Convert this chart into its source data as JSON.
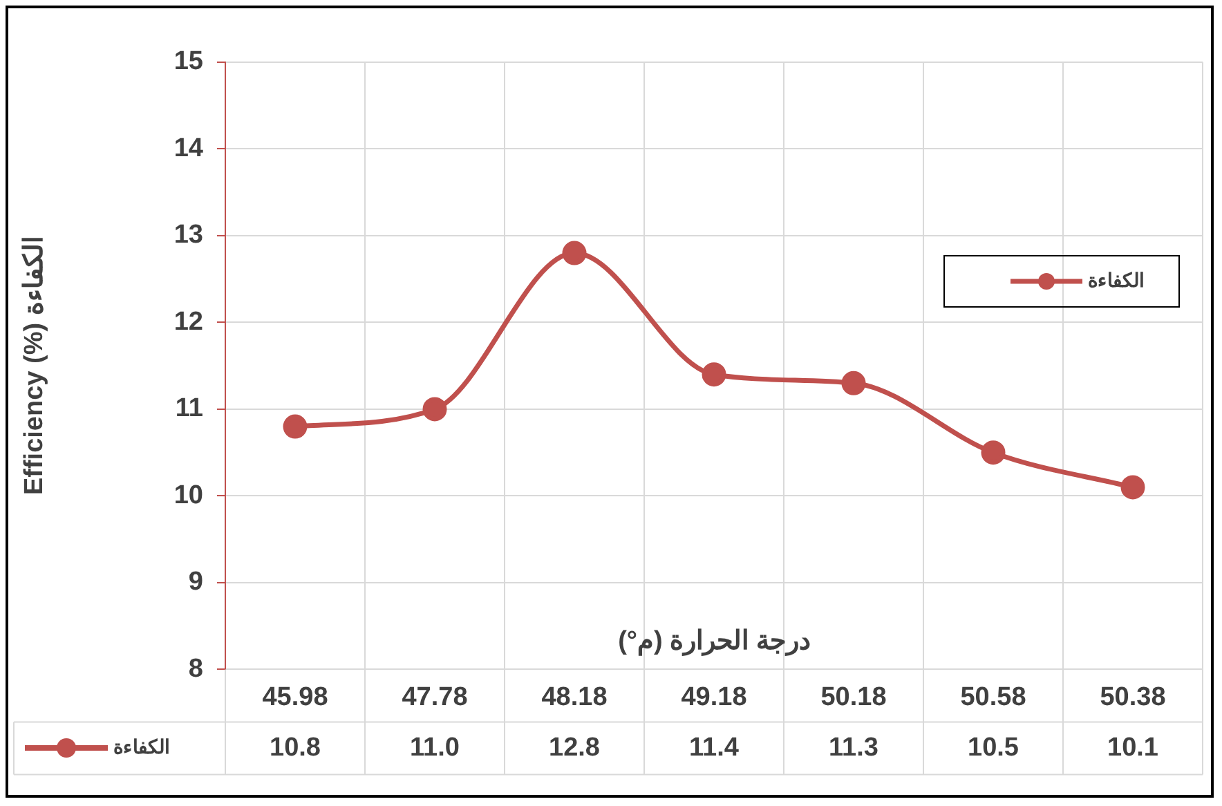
{
  "chart_data": {
    "type": "line",
    "xlabel": "درجة الحرارة (م°)",
    "ylabel": "Efficiency (%) الكفاءة",
    "categories": [
      "45.98",
      "47.78",
      "48.18",
      "49.18",
      "50.18",
      "50.58",
      "50.38"
    ],
    "series": [
      {
        "name": "الكفاءة",
        "color": "#c0504d",
        "values": [
          10.8,
          11.0,
          12.8,
          11.4,
          11.3,
          10.5,
          10.1
        ],
        "value_labels": [
          "10.8",
          "11.0",
          "12.8",
          "11.4",
          "11.3",
          "10.5",
          "10.1"
        ]
      }
    ],
    "ylim": [
      8,
      15
    ],
    "yticks": [
      8,
      9,
      10,
      11,
      12,
      13,
      14,
      15
    ],
    "grid": true,
    "legend": "right",
    "marker": "circle",
    "line_style": "solid"
  }
}
